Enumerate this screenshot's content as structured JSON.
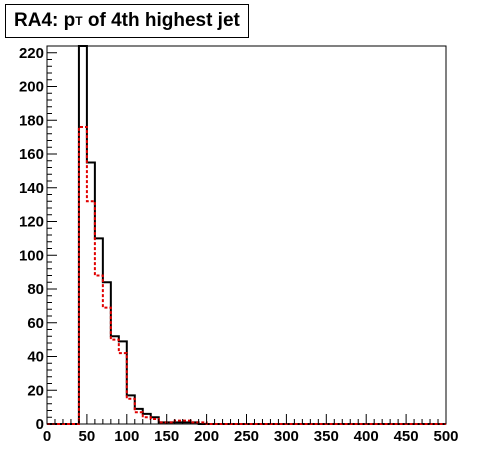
{
  "title": {
    "prefix": "RA4: p",
    "subscript": "T",
    "suffix": " of 4th highest jet"
  },
  "colors": {
    "series_black": "#000000",
    "series_red": "#e00000"
  },
  "chart_data": {
    "type": "histogram",
    "title": "RA4: pT of 4th highest jet",
    "xlabel": "",
    "ylabel": "",
    "xlim": [
      0,
      500
    ],
    "ylim": [
      0,
      224
    ],
    "bin_width": 10,
    "x_ticks": [
      0,
      50,
      100,
      150,
      200,
      250,
      300,
      350,
      400,
      450,
      500
    ],
    "y_ticks": [
      0,
      20,
      40,
      60,
      80,
      100,
      120,
      140,
      160,
      180,
      200,
      220
    ],
    "grid": false,
    "legend": "none",
    "series": [
      {
        "style": "solid",
        "color": "#000000",
        "bin_edges_start": [
          0,
          10,
          20,
          30,
          40,
          50,
          60,
          70,
          80,
          90,
          100,
          110,
          120,
          130,
          140,
          150,
          160,
          170,
          180,
          190,
          200
        ],
        "values": [
          0,
          0,
          0,
          0,
          224,
          155,
          110,
          84,
          52,
          49,
          17,
          9,
          6,
          4,
          1,
          1,
          1,
          1,
          1,
          0,
          0
        ]
      },
      {
        "style": "dashed",
        "color": "#e00000",
        "bin_edges_start": [
          0,
          10,
          20,
          30,
          40,
          50,
          60,
          70,
          80,
          90,
          100,
          110,
          120,
          130,
          140,
          150,
          160,
          170,
          180,
          190,
          200
        ],
        "values": [
          0,
          0,
          0,
          0,
          176,
          132,
          88,
          69,
          50,
          42,
          15,
          7,
          4,
          3,
          1,
          1,
          2,
          2,
          1,
          1,
          0
        ]
      }
    ]
  }
}
